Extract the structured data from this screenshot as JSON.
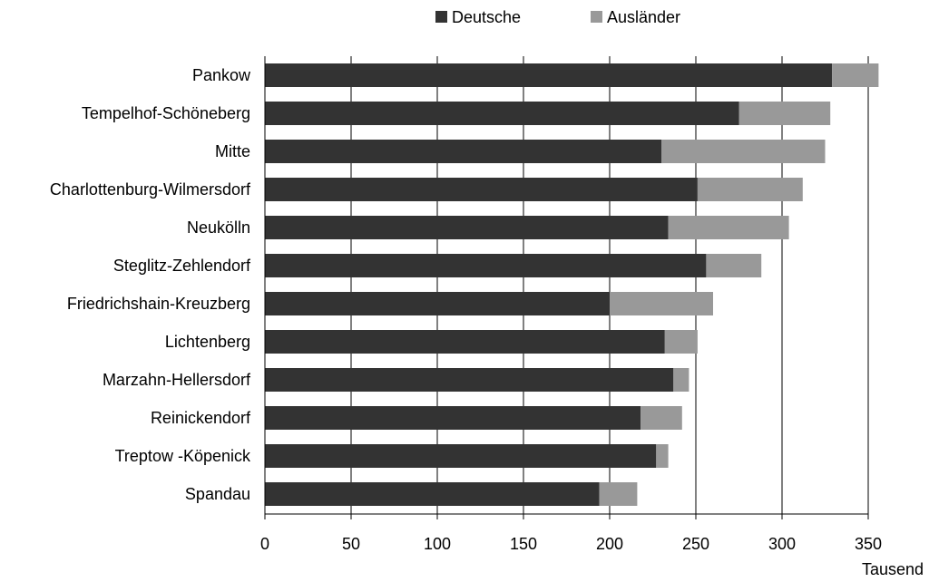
{
  "chart_data": {
    "type": "bar",
    "orientation": "horizontal",
    "stacked": true,
    "categories": [
      "Pankow",
      "Tempelhof-Schöneberg",
      "Mitte",
      "Charlottenburg-Wilmersdorf",
      "Neukölln",
      "Steglitz-Zehlendorf",
      "Friedrichshain-Kreuzberg",
      "Lichtenberg",
      "Marzahn-Hellersdorf",
      "Reinickendorf",
      "Treptow -Köpenick",
      "Spandau"
    ],
    "series": [
      {
        "name": "Deutsche",
        "color": "#333333",
        "values": [
          329,
          275,
          230,
          251,
          234,
          256,
          200,
          232,
          237,
          218,
          227,
          194
        ]
      },
      {
        "name": "Ausländer",
        "color": "#999999",
        "values": [
          27,
          53,
          95,
          61,
          70,
          32,
          60,
          19,
          9,
          24,
          7,
          22
        ]
      }
    ],
    "xlim": [
      0,
      350
    ],
    "xticks": [
      "0",
      "50",
      "100",
      "150",
      "200",
      "250",
      "300",
      "350"
    ],
    "xlabel": "Tausend",
    "ylabel": "",
    "title": "",
    "grid": "vertical",
    "legend_position": "top"
  }
}
